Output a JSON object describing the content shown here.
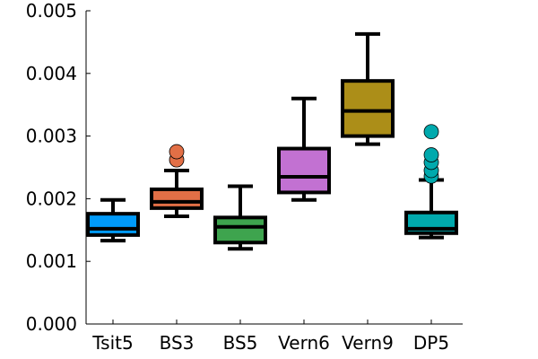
{
  "chart_data": {
    "type": "box",
    "categories": [
      "Tsit5",
      "BS3",
      "BS5",
      "Vern6",
      "Vern9",
      "DP5"
    ],
    "ylim": [
      0,
      0.005
    ],
    "yticks": [
      0,
      0.001,
      0.002,
      0.003,
      0.004,
      0.005
    ],
    "ytick_labels": [
      "0.000",
      "0.001",
      "0.002",
      "0.003",
      "0.004",
      "0.005"
    ],
    "grid": false,
    "legend": "none",
    "series": [
      {
        "category": "Tsit5",
        "color": "#009af9",
        "min": 0.00133,
        "q1": 0.00142,
        "median": 0.00152,
        "q3": 0.00176,
        "max": 0.00198,
        "outliers": []
      },
      {
        "category": "BS3",
        "color": "#e26f46",
        "min": 0.00172,
        "q1": 0.00185,
        "median": 0.00195,
        "q3": 0.00215,
        "max": 0.00245,
        "outliers": [
          0.00262,
          0.00275
        ]
      },
      {
        "category": "BS5",
        "color": "#3ea44e",
        "min": 0.0012,
        "q1": 0.0013,
        "median": 0.00155,
        "q3": 0.0017,
        "max": 0.0022,
        "outliers": []
      },
      {
        "category": "Vern6",
        "color": "#c271d2",
        "min": 0.00198,
        "q1": 0.0021,
        "median": 0.00235,
        "q3": 0.0028,
        "max": 0.0036,
        "outliers": []
      },
      {
        "category": "Vern9",
        "color": "#ac8e18",
        "min": 0.00287,
        "q1": 0.003,
        "median": 0.0034,
        "q3": 0.00388,
        "max": 0.00463,
        "outliers": []
      },
      {
        "category": "DP5",
        "color": "#00a9ad",
        "min": 0.00138,
        "q1": 0.00145,
        "median": 0.00152,
        "q3": 0.00178,
        "max": 0.0023,
        "outliers": [
          0.00236,
          0.00245,
          0.00258,
          0.0027,
          0.00307
        ]
      }
    ]
  }
}
